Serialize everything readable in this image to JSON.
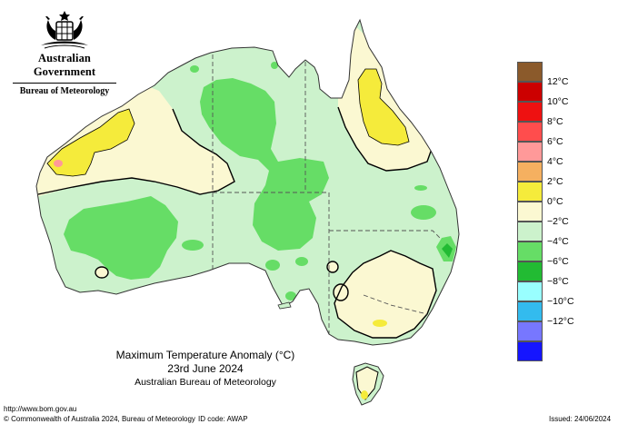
{
  "header": {
    "government": "Australian Government",
    "bureau": "Bureau of Meteorology"
  },
  "title": {
    "line1": "Maximum Temperature Anomaly (°C)",
    "line2": "23rd June 2024",
    "line3": "Australian Bureau of Meteorology"
  },
  "legend": {
    "items": [
      {
        "color": "#8b5a2b",
        "label": ""
      },
      {
        "color": "#cc0000",
        "label": "12°C"
      },
      {
        "color": "#ee1111",
        "label": "10°C"
      },
      {
        "color": "#ff4d4d",
        "label": "8°C"
      },
      {
        "color": "#ff9999",
        "label": "6°C"
      },
      {
        "color": "#f5b060",
        "label": "4°C"
      },
      {
        "color": "#f5eb3b",
        "label": "2°C"
      },
      {
        "color": "#fbf8d2",
        "label": "0°C"
      },
      {
        "color": "#ccf2cc",
        "label": "−2°C"
      },
      {
        "color": "#66dd66",
        "label": "−4°C"
      },
      {
        "color": "#22bb33",
        "label": "−6°C"
      },
      {
        "color": "#99ffff",
        "label": "−8°C"
      },
      {
        "color": "#33bbee",
        "label": "−10°C"
      },
      {
        "color": "#7777ff",
        "label": "−12°C"
      },
      {
        "color": "#1515ff",
        "label": ""
      }
    ]
  },
  "footer": {
    "url": "http://www.bom.gov.au",
    "copyright": "© Commonwealth of Australia 2024, Bureau of Meteorology",
    "id_code": "ID code: AWAP",
    "issued": "Issued: 24/06/2024"
  }
}
